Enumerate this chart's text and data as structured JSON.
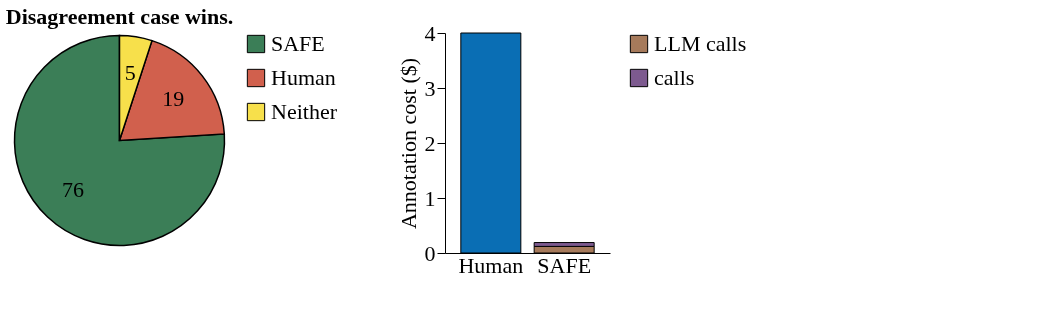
{
  "chart_data": [
    {
      "type": "pie",
      "title": "Disagreement case wins.",
      "categories": [
        "SAFE",
        "Human",
        "Neither"
      ],
      "values": [
        76,
        19,
        5
      ],
      "colors": [
        "#3b7e57",
        "#d1604d",
        "#f7e04b"
      ],
      "data_labels": true,
      "legend": "right"
    },
    {
      "type": "bar",
      "ylabel": "Annotation cost ($)",
      "categories": [
        "Human",
        "SAFE"
      ],
      "stacked": true,
      "ylim": [
        0,
        4
      ],
      "yticks": [
        0,
        1,
        2,
        3,
        4
      ],
      "grid": false,
      "legend": "right",
      "series": [
        {
          "color": "#0a6eb4",
          "values": [
            4,
            null
          ]
        },
        {
          "name": "LLM calls",
          "color": "#a67a5b",
          "values": [
            null,
            0.12
          ]
        },
        {
          "name": "calls",
          "color": "#7d5a8f",
          "values": [
            null,
            0.07
          ]
        }
      ]
    }
  ]
}
